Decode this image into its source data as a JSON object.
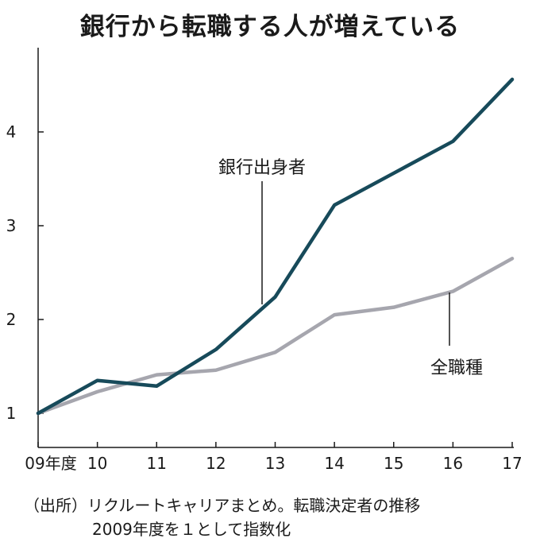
{
  "chart_data": {
    "type": "line",
    "title": "銀行から転職する人が増えている",
    "categories": [
      "09年度",
      "10",
      "11",
      "12",
      "13",
      "14",
      "15",
      "16",
      "17"
    ],
    "yticks": [
      "1",
      "2",
      "3",
      "4"
    ],
    "ylim": [
      0.85,
      4.95
    ],
    "grid": false,
    "series": [
      {
        "name": "銀行出身者",
        "color": "#174a5a",
        "values": [
          1.0,
          1.35,
          1.29,
          1.68,
          2.24,
          3.22,
          3.56,
          3.9,
          4.56
        ]
      },
      {
        "name": "全職種",
        "color": "#a6a6ae",
        "values": [
          1.0,
          1.23,
          1.41,
          1.46,
          1.65,
          2.05,
          2.13,
          2.3,
          2.65
        ]
      }
    ],
    "notes": [
      "（出所）リクルートキャリアまとめ。転職決定者の推移",
      "2009年度を１として指数化"
    ]
  }
}
